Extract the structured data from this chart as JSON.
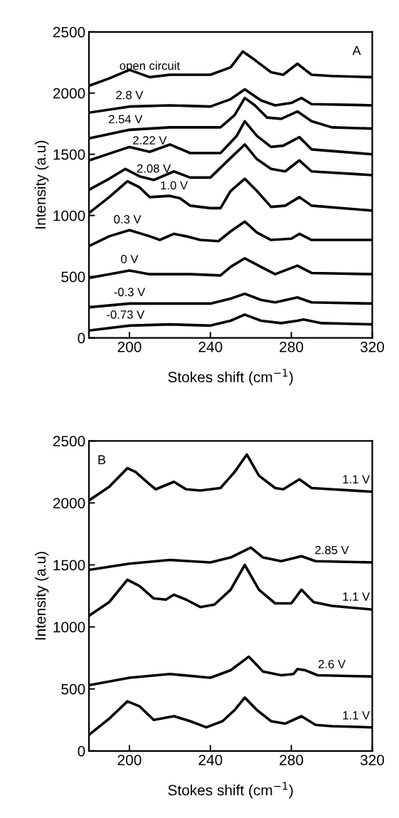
{
  "chart_data": [
    {
      "type": "line",
      "xlabel": "Stokes shift (cm$^{−1}$)",
      "ylabel": "Intensity (a.u)",
      "xlim": [
        180,
        320
      ],
      "ylim": [
        0,
        2500
      ],
      "xticks": [
        200,
        240,
        280,
        320
      ],
      "yticks": [
        0,
        500,
        1000,
        1500,
        2000,
        2500
      ],
      "grid": false,
      "legend": false,
      "series": [
        {
          "name": "open circuit",
          "color": "#000000",
          "x": [
            180,
            190,
            200,
            210,
            220,
            240,
            250,
            256,
            262,
            270,
            276,
            283,
            290,
            300,
            320
          ],
          "values": [
            2060,
            2120,
            2190,
            2130,
            2150,
            2150,
            2210,
            2340,
            2270,
            2170,
            2150,
            2240,
            2150,
            2140,
            2130
          ]
        },
        {
          "name": "2.8 V",
          "color": "#000000",
          "x": [
            180,
            200,
            220,
            240,
            250,
            257,
            265,
            272,
            280,
            285,
            290,
            320
          ],
          "values": [
            1840,
            1890,
            1900,
            1890,
            1950,
            2030,
            1940,
            1900,
            1920,
            1960,
            1910,
            1900
          ]
        },
        {
          "name": "2.54 V",
          "color": "#000000",
          "x": [
            180,
            200,
            220,
            245,
            252,
            257,
            262,
            268,
            275,
            283,
            290,
            300,
            320
          ],
          "values": [
            1630,
            1700,
            1720,
            1720,
            1820,
            1960,
            1900,
            1800,
            1790,
            1850,
            1770,
            1720,
            1710
          ]
        },
        {
          "name": "2.22 V",
          "color": "#000000",
          "x": [
            180,
            200,
            210,
            220,
            230,
            245,
            253,
            257,
            263,
            270,
            276,
            284,
            290,
            320
          ],
          "values": [
            1450,
            1560,
            1520,
            1580,
            1510,
            1510,
            1650,
            1770,
            1650,
            1560,
            1570,
            1640,
            1540,
            1500
          ]
        },
        {
          "name": "2.08 V",
          "color": "#000000",
          "x": [
            180,
            190,
            198,
            205,
            212,
            222,
            230,
            240,
            250,
            257,
            263,
            270,
            277,
            284,
            290,
            320
          ],
          "values": [
            1210,
            1300,
            1380,
            1320,
            1290,
            1360,
            1310,
            1310,
            1470,
            1580,
            1460,
            1380,
            1360,
            1450,
            1360,
            1330
          ]
        },
        {
          "name": "1.0 V",
          "color": "#000000",
          "x": [
            180,
            190,
            199,
            205,
            210,
            220,
            225,
            230,
            240,
            245,
            250,
            257,
            263,
            270,
            277,
            284,
            290,
            320
          ],
          "values": [
            1020,
            1150,
            1280,
            1230,
            1150,
            1160,
            1140,
            1080,
            1060,
            1060,
            1200,
            1300,
            1200,
            1070,
            1080,
            1150,
            1080,
            1040
          ]
        },
        {
          "name": "0.3 V",
          "color": "#000000",
          "x": [
            180,
            190,
            200,
            210,
            215,
            222,
            228,
            235,
            244,
            250,
            257,
            263,
            270,
            280,
            284,
            290,
            320
          ],
          "values": [
            750,
            830,
            880,
            830,
            800,
            850,
            830,
            800,
            790,
            870,
            950,
            860,
            800,
            810,
            850,
            800,
            800
          ]
        },
        {
          "name": "0 V",
          "color": "#000000",
          "x": [
            180,
            190,
            200,
            210,
            230,
            245,
            250,
            257,
            265,
            272,
            283,
            290,
            320
          ],
          "values": [
            490,
            520,
            550,
            520,
            520,
            510,
            580,
            650,
            580,
            520,
            590,
            530,
            520
          ]
        },
        {
          "name": "-0.3 V",
          "color": "#000000",
          "x": [
            180,
            200,
            220,
            240,
            250,
            257,
            265,
            272,
            283,
            290,
            320
          ],
          "values": [
            250,
            280,
            280,
            280,
            320,
            360,
            310,
            290,
            330,
            290,
            280
          ]
        },
        {
          "name": "-0.73 V",
          "color": "#000000",
          "x": [
            180,
            200,
            220,
            240,
            250,
            257,
            265,
            275,
            283,
            286,
            295,
            320
          ],
          "values": [
            60,
            100,
            110,
            100,
            140,
            190,
            140,
            120,
            140,
            150,
            120,
            110
          ]
        }
      ],
      "annotations": [
        "A"
      ]
    },
    {
      "type": "line",
      "xlabel": "Stokes shift (cm$^{−1}$)",
      "ylabel": "Intensity (a.u)",
      "xlim": [
        180,
        320
      ],
      "ylim": [
        0,
        2500
      ],
      "xticks": [
        200,
        240,
        280,
        320
      ],
      "yticks": [
        0,
        500,
        1000,
        1500,
        2000,
        2500
      ],
      "grid": false,
      "legend": false,
      "series": [
        {
          "name": "1.1 V",
          "color": "#000000",
          "x": [
            180,
            190,
            199,
            203,
            210,
            213,
            222,
            228,
            235,
            245,
            252,
            258,
            264,
            272,
            276,
            284,
            290,
            300,
            320
          ],
          "values": [
            2020,
            2130,
            2280,
            2250,
            2150,
            2110,
            2170,
            2110,
            2100,
            2120,
            2250,
            2390,
            2220,
            2120,
            2110,
            2190,
            2120,
            2110,
            2090
          ]
        },
        {
          "name": "2.85 V",
          "color": "#000000",
          "x": [
            180,
            200,
            220,
            240,
            250,
            260,
            266,
            275,
            285,
            292,
            320
          ],
          "values": [
            1460,
            1510,
            1540,
            1520,
            1560,
            1640,
            1560,
            1530,
            1570,
            1530,
            1520
          ]
        },
        {
          "name": "1.1 V",
          "color": "#000000",
          "x": [
            180,
            190,
            199,
            205,
            212,
            218,
            222,
            228,
            235,
            242,
            250,
            257,
            264,
            272,
            280,
            285,
            291,
            300,
            320
          ],
          "values": [
            1090,
            1200,
            1380,
            1330,
            1230,
            1220,
            1260,
            1220,
            1160,
            1180,
            1300,
            1500,
            1300,
            1190,
            1190,
            1300,
            1200,
            1170,
            1140
          ]
        },
        {
          "name": "2.6 V",
          "color": "#000000",
          "x": [
            180,
            200,
            220,
            240,
            250,
            259,
            266,
            275,
            281,
            283,
            287,
            293,
            320
          ],
          "values": [
            530,
            590,
            620,
            590,
            650,
            760,
            640,
            610,
            620,
            660,
            650,
            610,
            600
          ]
        },
        {
          "name": "1.1 V",
          "color": "#000000",
          "x": [
            180,
            190,
            199,
            205,
            212,
            222,
            230,
            238,
            246,
            252,
            257,
            263,
            270,
            277,
            285,
            292,
            300,
            320
          ],
          "values": [
            130,
            260,
            400,
            360,
            250,
            280,
            240,
            190,
            240,
            330,
            430,
            330,
            240,
            220,
            280,
            210,
            200,
            190
          ]
        }
      ],
      "annotations": [
        "B"
      ]
    }
  ]
}
